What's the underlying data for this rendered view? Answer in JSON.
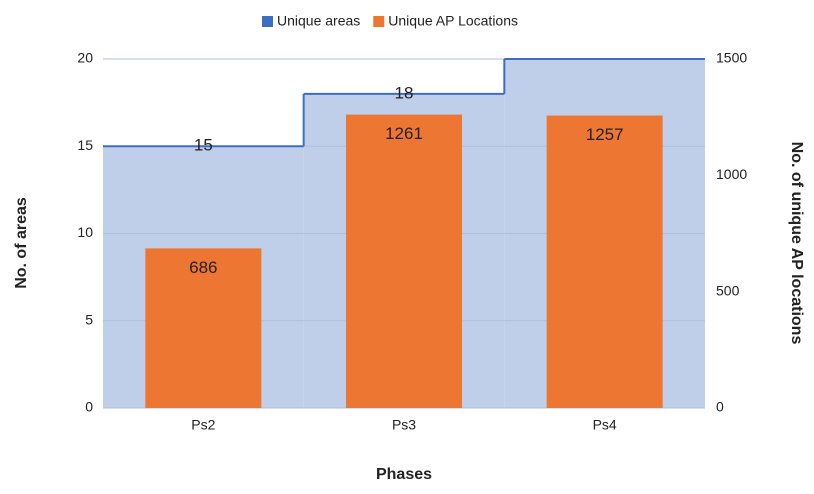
{
  "chart_data": {
    "type": "combo",
    "x_label": "Phases",
    "y_label": "No. of areas",
    "y2_label": "No. of unique AP locations",
    "categories": [
      "Ps2",
      "Ps3",
      "Ps4"
    ],
    "series": [
      {
        "name": "Unique areas",
        "type": "stepped-area",
        "color": "#3c6fc4",
        "fill": "#bfcfe9",
        "values": [
          15,
          18,
          20
        ],
        "value_labels": [
          "15",
          "18",
          null
        ]
      },
      {
        "name": "Unique AP Locations",
        "type": "bar",
        "axis": "y2",
        "color": "#ee7633",
        "values": [
          686,
          1261,
          1257
        ]
      }
    ],
    "ylim": [
      0,
      20
    ],
    "yticks": [
      0,
      5,
      10,
      15,
      20
    ],
    "y2lim": [
      0,
      1500
    ],
    "y2ticks": [
      0,
      500,
      1000,
      1500
    ],
    "grid": true,
    "legend": "top"
  }
}
